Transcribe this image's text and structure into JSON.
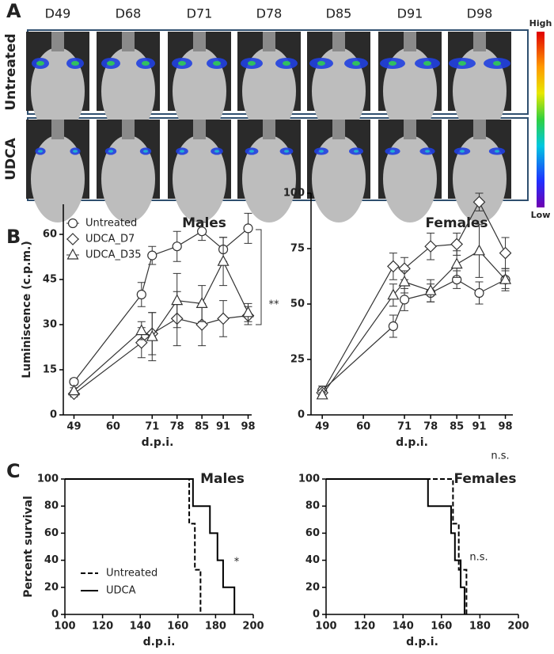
{
  "panel_labels": [
    "A",
    "B",
    "C"
  ],
  "panel_a": {
    "days": [
      "D49",
      "D68",
      "D71",
      "D78",
      "D85",
      "D91",
      "D98"
    ],
    "rows": [
      "Untreated",
      "UDCA"
    ],
    "colorbar": {
      "high": "High",
      "low": "Low"
    }
  },
  "chart_data": [
    {
      "type": "line",
      "title": "Males",
      "x_label": "d.p.i.",
      "y_label": "Luminiscence (c.p.m.)",
      "x": [
        49,
        68,
        71,
        78,
        85,
        91,
        98
      ],
      "xlim": [
        46,
        99
      ],
      "xticks": [
        49,
        60,
        71,
        78,
        85,
        91,
        98
      ],
      "ylim": [
        0,
        70
      ],
      "yticks": [
        0,
        15,
        30,
        45,
        60
      ],
      "legend": "top-left",
      "annotation": "**",
      "series": [
        {
          "name": "Untreated",
          "color": "#333333",
          "marker": "circle",
          "values": [
            11,
            40,
            53,
            56,
            61,
            55,
            62
          ],
          "errors": [
            1,
            4,
            3,
            5,
            3,
            4,
            5
          ]
        },
        {
          "name": "UDCA_D7",
          "color": "#333333",
          "marker": "diamond",
          "values": [
            7,
            24,
            27,
            32,
            30,
            32,
            33
          ],
          "errors": [
            1,
            5,
            7,
            9,
            7,
            6,
            3
          ]
        },
        {
          "name": "UDCA_D35",
          "color": "#333333",
          "marker": "triangle",
          "values": [
            8,
            28,
            26,
            38,
            37,
            51,
            34
          ],
          "errors": [
            1,
            3,
            8,
            9,
            6,
            8,
            3
          ]
        }
      ]
    },
    {
      "type": "line",
      "title": "Females",
      "x_label": "d.p.i.",
      "x": [
        49,
        68,
        71,
        78,
        85,
        91,
        98
      ],
      "xlim": [
        46,
        100
      ],
      "xticks": [
        49,
        60,
        71,
        78,
        85,
        91,
        98
      ],
      "ylim": [
        0,
        100
      ],
      "yticks": [
        0,
        25,
        50,
        75,
        100
      ],
      "annotation": "n.s.",
      "series": [
        {
          "name": "Untreated",
          "color": "#333333",
          "marker": "circle",
          "values": [
            11,
            40,
            52,
            55,
            61,
            55,
            61
          ],
          "errors": [
            2,
            5,
            5,
            4,
            4,
            5,
            4
          ]
        },
        {
          "name": "UDCA_D7",
          "color": "#333333",
          "marker": "diamond",
          "values": [
            10,
            67,
            66,
            76,
            77,
            96,
            73
          ],
          "errors": [
            1,
            6,
            5,
            6,
            5,
            4,
            7
          ]
        },
        {
          "name": "UDCA_D35",
          "color": "#333333",
          "marker": "triangle",
          "values": [
            9,
            54,
            60,
            56,
            68,
            74,
            61
          ],
          "errors": [
            1,
            5,
            5,
            5,
            6,
            12,
            5
          ]
        }
      ]
    },
    {
      "type": "step",
      "title": "Males",
      "x_label": "d.p.i.",
      "y_label": "Percent survival",
      "xlim": [
        100,
        200
      ],
      "xticks": [
        100,
        120,
        140,
        160,
        180,
        200
      ],
      "ylim": [
        0,
        100
      ],
      "yticks": [
        0,
        20,
        40,
        60,
        80,
        100
      ],
      "legend": "bottom-left",
      "annotation": "*",
      "series": [
        {
          "name": "Untreated",
          "color": "#000000",
          "dash": true,
          "x": [
            100,
            166,
            169,
            172
          ],
          "values": [
            100,
            67,
            33,
            0
          ]
        },
        {
          "name": "UDCA",
          "color": "#000000",
          "dash": false,
          "x": [
            100,
            168,
            177,
            181,
            184,
            190
          ],
          "values": [
            100,
            80,
            60,
            40,
            20,
            0
          ]
        }
      ]
    },
    {
      "type": "step",
      "title": "Females",
      "x_label": "d.p.i.",
      "xlim": [
        100,
        200
      ],
      "xticks": [
        100,
        120,
        140,
        160,
        180,
        200
      ],
      "ylim": [
        0,
        100
      ],
      "yticks": [
        0,
        20,
        40,
        60,
        80,
        100
      ],
      "annotation": "n.s.",
      "series": [
        {
          "name": "Untreated",
          "color": "#000000",
          "dash": true,
          "x": [
            100,
            166,
            169,
            173
          ],
          "values": [
            100,
            67,
            33,
            0
          ]
        },
        {
          "name": "UDCA",
          "color": "#000000",
          "dash": false,
          "x": [
            100,
            153,
            165,
            167,
            170,
            172
          ],
          "values": [
            100,
            80,
            60,
            40,
            20,
            0
          ]
        }
      ]
    }
  ]
}
